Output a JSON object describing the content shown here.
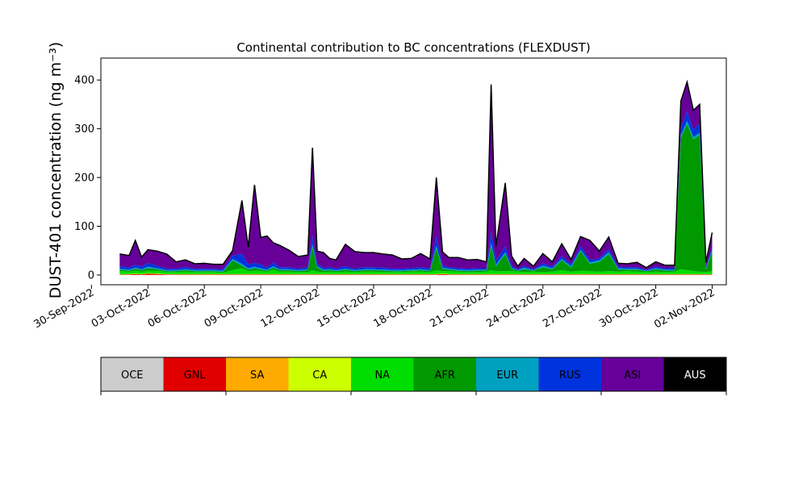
{
  "chart_data": {
    "type": "area",
    "title": "Continental contribution to BC concentrations (FLEXDUST)",
    "xlabel": "",
    "ylabel": "DUST-401 concentration (ng m⁻³)",
    "ylim": [
      -20,
      445
    ],
    "xlim": [
      "2022-09-30T12:00",
      "2022-11-02T18:00"
    ],
    "grid": false,
    "y_ticks": [
      0,
      100,
      200,
      300,
      400
    ],
    "x_ticks": [
      {
        "date": "2022-09-30",
        "label": "30-Sep-2022"
      },
      {
        "date": "2022-10-03",
        "label": "03-Oct-2022"
      },
      {
        "date": "2022-10-06",
        "label": "06-Oct-2022"
      },
      {
        "date": "2022-10-09",
        "label": "09-Oct-2022"
      },
      {
        "date": "2022-10-12",
        "label": "12-Oct-2022"
      },
      {
        "date": "2022-10-15",
        "label": "15-Oct-2022"
      },
      {
        "date": "2022-10-18",
        "label": "18-Oct-2022"
      },
      {
        "date": "2022-10-21",
        "label": "21-Oct-2022"
      },
      {
        "date": "2022-10-24",
        "label": "24-Oct-2022"
      },
      {
        "date": "2022-10-27",
        "label": "27-Oct-2022"
      },
      {
        "date": "2022-10-30",
        "label": "30-Oct-2022"
      },
      {
        "date": "2022-11-02",
        "label": "02-Nov-2022"
      }
    ],
    "x": [
      "2022-10-01T12:00",
      "2022-10-02T00:00",
      "2022-10-02T08:00",
      "2022-10-02T16:00",
      "2022-10-03T00:00",
      "2022-10-03T12:00",
      "2022-10-04T00:00",
      "2022-10-04T12:00",
      "2022-10-05T00:00",
      "2022-10-05T12:00",
      "2022-10-06T00:00",
      "2022-10-06T12:00",
      "2022-10-07T00:00",
      "2022-10-07T12:00",
      "2022-10-08T00:00",
      "2022-10-08T08:00",
      "2022-10-08T16:00",
      "2022-10-09T00:00",
      "2022-10-09T08:00",
      "2022-10-09T16:00",
      "2022-10-10T00:00",
      "2022-10-10T12:00",
      "2022-10-11T00:00",
      "2022-10-11T12:00",
      "2022-10-11T18:00",
      "2022-10-12T00:00",
      "2022-10-12T08:00",
      "2022-10-12T16:00",
      "2022-10-13T00:00",
      "2022-10-13T12:00",
      "2022-10-14T00:00",
      "2022-10-14T12:00",
      "2022-10-15T00:00",
      "2022-10-15T12:00",
      "2022-10-16T00:00",
      "2022-10-16T12:00",
      "2022-10-17T00:00",
      "2022-10-17T12:00",
      "2022-10-18T00:00",
      "2022-10-18T08:00",
      "2022-10-18T16:00",
      "2022-10-19T00:00",
      "2022-10-19T12:00",
      "2022-10-20T00:00",
      "2022-10-20T12:00",
      "2022-10-21T00:00",
      "2022-10-21T06:00",
      "2022-10-21T12:00",
      "2022-10-22T00:00",
      "2022-10-22T08:00",
      "2022-10-22T16:00",
      "2022-10-23T00:00",
      "2022-10-23T12:00",
      "2022-10-24T00:00",
      "2022-10-24T12:00",
      "2022-10-25T00:00",
      "2022-10-25T12:00",
      "2022-10-26T00:00",
      "2022-10-26T12:00",
      "2022-10-27T00:00",
      "2022-10-27T12:00",
      "2022-10-28T00:00",
      "2022-10-28T12:00",
      "2022-10-29T00:00",
      "2022-10-29T12:00",
      "2022-10-30T00:00",
      "2022-10-30T12:00",
      "2022-10-31T00:00",
      "2022-10-31T08:00",
      "2022-10-31T16:00",
      "2022-11-01T00:00",
      "2022-11-01T08:00",
      "2022-11-01T16:00",
      "2022-11-02T00:00"
    ],
    "series": [
      {
        "name": "OCE",
        "color": "#cccccc",
        "values": [
          0,
          0,
          0,
          0,
          0,
          0,
          0,
          0,
          0,
          0,
          0,
          0,
          0,
          0,
          0,
          0,
          0,
          0,
          0,
          0,
          0,
          0,
          0,
          0,
          0,
          0,
          0,
          0,
          0,
          0,
          0,
          0,
          0,
          0,
          0,
          0,
          0,
          0,
          0,
          0,
          0,
          0,
          0,
          0,
          0,
          0,
          0,
          0,
          0,
          0,
          0,
          0,
          0,
          0,
          0,
          0,
          0,
          0,
          0,
          0,
          0,
          0,
          0,
          0,
          0,
          0,
          0,
          0,
          0,
          0,
          0,
          0,
          0,
          0
        ]
      },
      {
        "name": "GNL",
        "color": "#e00000",
        "values": [
          1,
          1,
          2,
          1,
          3,
          2,
          1,
          1,
          1,
          1,
          1,
          1,
          1,
          1,
          1,
          1,
          1,
          1,
          1,
          1,
          1,
          1,
          1,
          1,
          1,
          1,
          1,
          1,
          1,
          1,
          1,
          1,
          1,
          1,
          1,
          1,
          1,
          1,
          1,
          1,
          2,
          1,
          1,
          1,
          1,
          1,
          1,
          1,
          1,
          1,
          1,
          1,
          1,
          1,
          1,
          1,
          1,
          1,
          1,
          1,
          1,
          1,
          1,
          1,
          1,
          1,
          1,
          1,
          1,
          1,
          1,
          1,
          1,
          1
        ]
      },
      {
        "name": "SA",
        "color": "#ffaa00",
        "values": [
          0,
          0,
          0,
          0,
          0,
          0,
          0,
          0,
          0,
          0,
          0,
          0,
          0,
          0,
          0,
          0,
          0,
          0,
          0,
          0,
          0,
          0,
          0,
          0,
          0,
          0,
          0,
          0,
          0,
          0,
          0,
          0,
          0,
          0,
          0,
          0,
          0,
          0,
          0,
          0,
          0,
          0,
          0,
          0,
          0,
          0,
          0,
          0,
          0,
          0,
          0,
          0,
          0,
          0,
          0,
          0,
          0,
          0,
          0,
          0,
          0,
          0,
          0,
          0,
          0,
          0,
          0,
          0,
          0,
          0,
          0,
          0,
          0,
          0
        ]
      },
      {
        "name": "CA",
        "color": "#ccff00",
        "values": [
          1,
          1,
          1,
          1,
          1,
          1,
          1,
          1,
          1,
          1,
          1,
          1,
          1,
          1,
          1,
          1,
          1,
          1,
          1,
          1,
          1,
          1,
          1,
          1,
          1,
          1,
          1,
          1,
          1,
          1,
          1,
          1,
          1,
          1,
          1,
          1,
          1,
          1,
          1,
          1,
          1,
          1,
          1,
          1,
          1,
          1,
          1,
          1,
          1,
          1,
          1,
          1,
          1,
          1,
          1,
          1,
          1,
          1,
          1,
          1,
          1,
          1,
          1,
          1,
          1,
          1,
          1,
          1,
          1,
          1,
          1,
          1,
          1,
          1
        ]
      },
      {
        "name": "NA",
        "color": "#00dd00",
        "values": [
          6,
          5,
          6,
          5,
          5,
          6,
          4,
          4,
          5,
          4,
          4,
          4,
          3,
          8,
          12,
          6,
          7,
          6,
          5,
          9,
          5,
          5,
          4,
          4,
          8,
          5,
          4,
          5,
          4,
          5,
          4,
          5,
          5,
          4,
          4,
          4,
          5,
          5,
          4,
          8,
          5,
          6,
          5,
          4,
          4,
          5,
          8,
          6,
          6,
          6,
          5,
          4,
          5,
          4,
          5,
          8,
          5,
          7,
          6,
          5,
          6,
          5,
          6,
          5,
          4,
          5,
          4,
          5,
          10,
          8,
          6,
          5,
          4,
          6
        ]
      },
      {
        "name": "AFR",
        "color": "#009900",
        "values": [
          3,
          2,
          4,
          3,
          5,
          3,
          2,
          2,
          3,
          2,
          2,
          2,
          2,
          20,
          5,
          3,
          5,
          3,
          2,
          4,
          3,
          3,
          2,
          4,
          48,
          8,
          3,
          3,
          2,
          4,
          2,
          3,
          3,
          3,
          2,
          2,
          2,
          3,
          2,
          45,
          5,
          3,
          2,
          2,
          3,
          2,
          50,
          10,
          35,
          5,
          2,
          6,
          2,
          10,
          5,
          20,
          8,
          40,
          15,
          20,
          35,
          5,
          3,
          4,
          2,
          5,
          3,
          2,
          270,
          300,
          270,
          280,
          5,
          40
        ]
      },
      {
        "name": "EUR",
        "color": "#00a0c0",
        "values": [
          2,
          2,
          2,
          2,
          3,
          2,
          2,
          2,
          2,
          2,
          2,
          2,
          2,
          3,
          4,
          3,
          3,
          3,
          2,
          3,
          2,
          2,
          2,
          2,
          5,
          3,
          2,
          2,
          2,
          2,
          2,
          2,
          2,
          2,
          2,
          2,
          2,
          2,
          2,
          5,
          2,
          2,
          2,
          2,
          2,
          2,
          6,
          3,
          4,
          2,
          1,
          3,
          1,
          3,
          2,
          3,
          3,
          3,
          3,
          3,
          4,
          2,
          2,
          2,
          1,
          2,
          2,
          2,
          5,
          6,
          5,
          5,
          2,
          3
        ]
      },
      {
        "name": "RUS",
        "color": "#0033dd",
        "values": [
          5,
          4,
          6,
          5,
          8,
          5,
          3,
          3,
          4,
          3,
          3,
          3,
          3,
          7,
          20,
          8,
          8,
          8,
          4,
          8,
          4,
          4,
          3,
          4,
          18,
          6,
          3,
          4,
          3,
          5,
          3,
          4,
          4,
          4,
          3,
          3,
          3,
          4,
          3,
          20,
          4,
          3,
          3,
          3,
          3,
          3,
          25,
          8,
          12,
          4,
          2,
          4,
          2,
          5,
          3,
          6,
          4,
          7,
          5,
          4,
          6,
          3,
          3,
          3,
          2,
          3,
          3,
          3,
          15,
          20,
          15,
          18,
          3,
          6
        ]
      },
      {
        "name": "ASI",
        "color": "#660099",
        "values": [
          25,
          25,
          50,
          20,
          27,
          30,
          30,
          14,
          15,
          10,
          11,
          9,
          10,
          10,
          110,
          35,
          160,
          55,
          65,
          40,
          45,
          35,
          25,
          25,
          180,
          25,
          32,
          18,
          18,
          45,
          35,
          30,
          30,
          28,
          28,
          20,
          20,
          28,
          20,
          120,
          28,
          20,
          22,
          18,
          18,
          13,
          300,
          30,
          130,
          20,
          6,
          15,
          6,
          20,
          10,
          25,
          10,
          20,
          40,
          15,
          25,
          7,
          7,
          10,
          4,
          10,
          6,
          6,
          55,
          60,
          40,
          40,
          10,
          30
        ]
      },
      {
        "name": "AUS",
        "color": "#000000",
        "values": [
          0,
          0,
          0,
          0,
          0,
          0,
          0,
          0,
          0,
          0,
          0,
          0,
          0,
          0,
          0,
          0,
          0,
          0,
          0,
          0,
          0,
          0,
          0,
          0,
          0,
          0,
          0,
          0,
          0,
          0,
          0,
          0,
          0,
          0,
          0,
          0,
          0,
          0,
          0,
          0,
          0,
          0,
          0,
          0,
          0,
          0,
          0,
          0,
          0,
          0,
          0,
          0,
          0,
          0,
          0,
          0,
          0,
          0,
          0,
          0,
          0,
          0,
          0,
          0,
          0,
          0,
          0,
          0,
          0,
          0,
          0,
          0,
          0,
          0
        ]
      }
    ],
    "legend": {
      "placement": "bottom",
      "entries": [
        "OCE",
        "GNL",
        "SA",
        "CA",
        "NA",
        "AFR",
        "EUR",
        "RUS",
        "ASI",
        "AUS"
      ],
      "text_colors": [
        "#000000",
        "#000000",
        "#000000",
        "#000000",
        "#000000",
        "#000000",
        "#000000",
        "#000000",
        "#000000",
        "#ffffff"
      ]
    }
  }
}
